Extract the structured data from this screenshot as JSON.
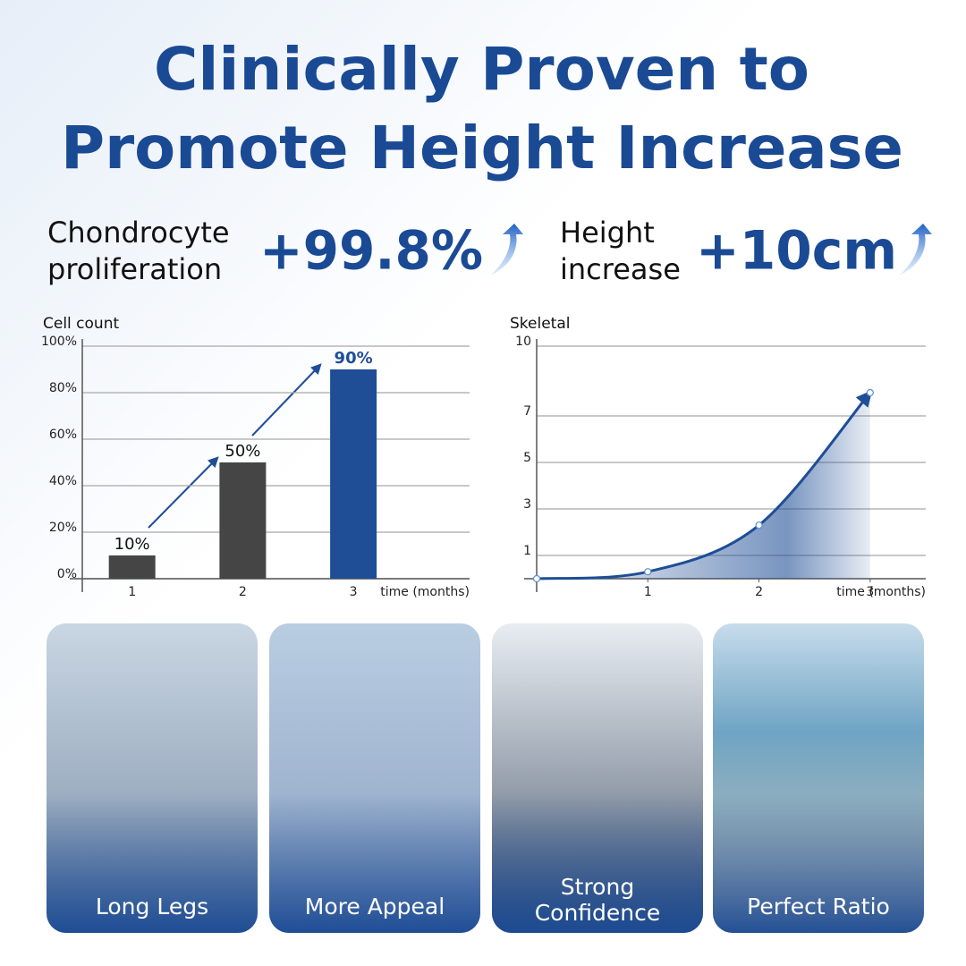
{
  "header": {
    "title_lines": [
      "Clinically Proven to",
      "Promote Height Increase"
    ]
  },
  "stats": [
    {
      "label_lines": [
        "Chondrocyte",
        "proliferation"
      ],
      "value": "+99.8%"
    },
    {
      "label_lines": [
        "Height",
        "increase"
      ],
      "value": "+10cm"
    }
  ],
  "chart_data": [
    {
      "type": "bar",
      "y_label": "Cell count",
      "x_label": "time (months)",
      "categories": [
        "1",
        "2",
        "3"
      ],
      "values": [
        10,
        50,
        90
      ],
      "value_labels": [
        "10%",
        "50%",
        "90%"
      ],
      "colors": [
        "#454545",
        "#454545",
        "#1f4e96"
      ],
      "ylim": [
        0,
        100
      ],
      "yticks": [
        {
          "value": 0,
          "label": "0%"
        },
        {
          "value": 20,
          "label": "20%"
        },
        {
          "value": 40,
          "label": "40%"
        },
        {
          "value": 60,
          "label": "60%"
        },
        {
          "value": 80,
          "label": "80%"
        },
        {
          "value": 100,
          "label": "100%"
        }
      ],
      "grid": true
    },
    {
      "type": "line",
      "y_label": "Skeletal",
      "x_label": "time (months)",
      "x": [
        0,
        1,
        2,
        3
      ],
      "values": [
        0,
        0.3,
        2.3,
        8
      ],
      "color": "#1f4e96",
      "xlim": [
        0,
        3.5
      ],
      "xticks": [
        1,
        2,
        3
      ],
      "ylim": [
        0,
        10
      ],
      "yticks": [
        1,
        3,
        5,
        7,
        10
      ],
      "grid": true
    }
  ],
  "cards": [
    {
      "label_lines": [
        "Long Legs"
      ]
    },
    {
      "label_lines": [
        "More Appeal"
      ]
    },
    {
      "label_lines": [
        "Strong",
        "Confidence"
      ]
    },
    {
      "label_lines": [
        "Perfect Ratio"
      ]
    }
  ]
}
